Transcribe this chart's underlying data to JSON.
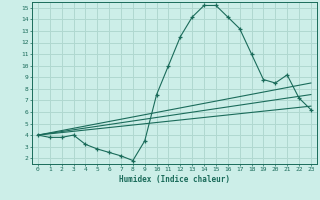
{
  "title": "",
  "xlabel": "Humidex (Indice chaleur)",
  "background_color": "#cceee8",
  "grid_color": "#b0d8d0",
  "line_color": "#1a6b5a",
  "xlim": [
    -0.5,
    23.5
  ],
  "ylim": [
    1.5,
    15.5
  ],
  "xticks": [
    0,
    1,
    2,
    3,
    4,
    5,
    6,
    7,
    8,
    9,
    10,
    11,
    12,
    13,
    14,
    15,
    16,
    17,
    18,
    19,
    20,
    21,
    22,
    23
  ],
  "yticks": [
    2,
    3,
    4,
    5,
    6,
    7,
    8,
    9,
    10,
    11,
    12,
    13,
    14,
    15
  ],
  "main_line_x": [
    0,
    1,
    2,
    3,
    4,
    5,
    6,
    7,
    8,
    9,
    10,
    11,
    12,
    13,
    14,
    15,
    16,
    17,
    18,
    19,
    20,
    21,
    22,
    23
  ],
  "main_line_y": [
    4.0,
    3.8,
    3.8,
    4.0,
    3.2,
    2.8,
    2.5,
    2.2,
    1.8,
    3.5,
    7.5,
    10.0,
    12.5,
    14.2,
    15.2,
    15.2,
    14.2,
    13.2,
    11.0,
    8.8,
    8.5,
    9.2,
    7.2,
    6.2
  ],
  "line2_x": [
    0,
    23
  ],
  "line2_y": [
    4.0,
    8.5
  ],
  "line3_x": [
    0,
    23
  ],
  "line3_y": [
    4.0,
    7.5
  ],
  "line4_x": [
    0,
    23
  ],
  "line4_y": [
    4.0,
    6.5
  ]
}
